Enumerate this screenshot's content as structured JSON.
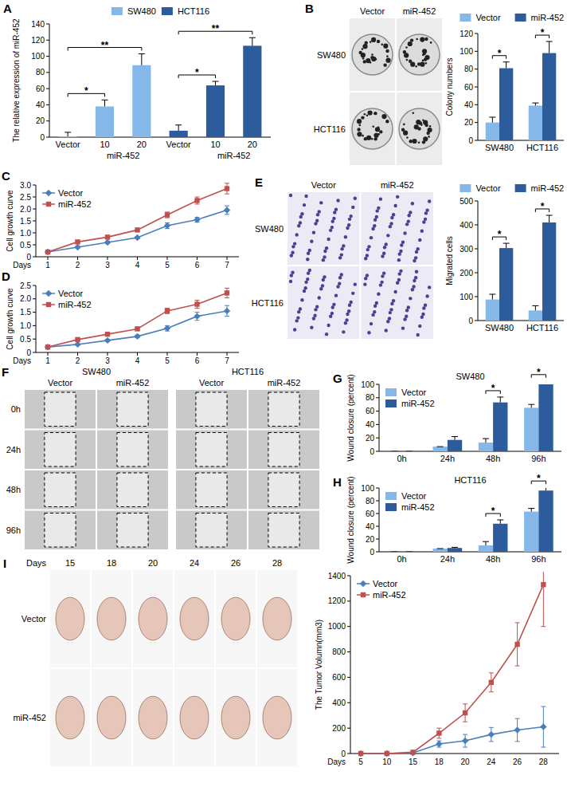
{
  "chart_data": [
    {
      "panel": "A",
      "type": "bar",
      "y_label": "The relative expression of miR-452",
      "categories": [
        "Vector",
        "10",
        "20",
        "Vector",
        "10",
        "20"
      ],
      "group_labels": [
        {
          "text": "miR-452",
          "from": 1,
          "to": 2
        },
        {
          "text": "miR-452",
          "from": 4,
          "to": 5
        }
      ],
      "series": [
        {
          "name": "SW480",
          "color": "#85b8e8",
          "values": [
            1,
            38,
            89,
            null,
            null,
            null
          ],
          "errors": [
            5,
            8,
            14,
            null,
            null,
            null
          ]
        },
        {
          "name": "HCT116",
          "color": "#2c5c9b",
          "values": [
            null,
            null,
            null,
            8,
            64,
            113
          ],
          "errors": [
            null,
            null,
            null,
            7,
            5,
            10
          ]
        }
      ],
      "ylim": [
        0,
        140
      ],
      "yticks": [
        0,
        20,
        40,
        60,
        80,
        100,
        120,
        140
      ],
      "legend": "top",
      "significance": [
        {
          "label": "*",
          "from": 0,
          "to": 1
        },
        {
          "label": "**",
          "from": 0,
          "to": 2
        },
        {
          "label": "*",
          "from": 3,
          "to": 4
        },
        {
          "label": "**",
          "from": 3,
          "to": 5
        }
      ]
    },
    {
      "panel": "B",
      "type": "bar",
      "y_label": "Colony numbers",
      "categories": [
        "SW480",
        "HCT116"
      ],
      "series": [
        {
          "name": "Vector",
          "color": "#85b8e8",
          "values": [
            20,
            39
          ],
          "errors": [
            6,
            3
          ]
        },
        {
          "name": "miR-452",
          "color": "#2c5c9b",
          "values": [
            81,
            98
          ],
          "errors": [
            7,
            13
          ]
        }
      ],
      "ylim": [
        0,
        120
      ],
      "yticks": [
        0,
        20,
        40,
        60,
        80,
        100,
        120
      ],
      "legend": "top",
      "significance": [
        {
          "label": "*",
          "category": 0
        },
        {
          "label": "*",
          "category": 1
        }
      ]
    },
    {
      "panel": "C",
      "type": "line",
      "y_label": "Cell growth curve",
      "x_label": "Days",
      "x": [
        1,
        2,
        3,
        4,
        5,
        6,
        7
      ],
      "xlim": [
        0.6,
        7.4
      ],
      "xticks": [
        1,
        2,
        3,
        4,
        5,
        6,
        7
      ],
      "series": [
        {
          "name": "Vector",
          "color": "#4a7ebb",
          "marker": "diamond",
          "values": [
            0.2,
            0.4,
            0.6,
            0.8,
            1.3,
            1.55,
            1.95
          ],
          "errors": [
            0.02,
            0.03,
            0.04,
            0.05,
            0.12,
            0.1,
            0.18
          ]
        },
        {
          "name": "miR-452",
          "color": "#c0504d",
          "marker": "square",
          "values": [
            0.2,
            0.62,
            0.82,
            1.12,
            1.75,
            2.35,
            2.85
          ],
          "errors": [
            0.02,
            0.04,
            0.05,
            0.06,
            0.12,
            0.15,
            0.22
          ]
        }
      ],
      "ylim": [
        0,
        3
      ],
      "yticks": [
        0,
        0.5,
        {
          "value": 1,
          "label": "1.0"
        },
        1.5,
        {
          "value": 2,
          "label": "2.0"
        },
        2.5,
        {
          "value": 3,
          "label": "3.0"
        }
      ],
      "legend": "top-left"
    },
    {
      "panel": "D",
      "type": "line",
      "y_label": "Cell growth curve",
      "x_label": "Days",
      "x": [
        1,
        2,
        3,
        4,
        5,
        6,
        7
      ],
      "xlim": [
        0.6,
        7.4
      ],
      "xticks": [
        1,
        2,
        3,
        4,
        5,
        6,
        7
      ],
      "series": [
        {
          "name": "Vector",
          "color": "#4a7ebb",
          "marker": "diamond",
          "values": [
            0.2,
            0.3,
            0.45,
            0.6,
            0.9,
            1.35,
            1.55
          ],
          "errors": [
            0.02,
            0.03,
            0.04,
            0.05,
            0.1,
            0.15,
            0.2
          ]
        },
        {
          "name": "miR-452",
          "color": "#c0504d",
          "marker": "square",
          "values": [
            0.2,
            0.48,
            0.68,
            0.88,
            1.55,
            1.8,
            2.22
          ],
          "errors": [
            0.02,
            0.03,
            0.04,
            0.05,
            0.1,
            0.15,
            0.18
          ]
        }
      ],
      "ylim": [
        0,
        2.5
      ],
      "yticks": [
        0,
        0.5,
        {
          "value": 1,
          "label": "1.0"
        },
        1.5,
        {
          "value": 2,
          "label": "2.0"
        },
        2.5
      ],
      "legend": "top-left"
    },
    {
      "panel": "E",
      "type": "bar",
      "y_label": "Migrated cells",
      "categories": [
        "SW480",
        "HCT116"
      ],
      "series": [
        {
          "name": "Vector",
          "color": "#85b8e8",
          "values": [
            88,
            42
          ],
          "errors": [
            22,
            20
          ]
        },
        {
          "name": "miR-452",
          "color": "#2c5c9b",
          "values": [
            303,
            410
          ],
          "errors": [
            20,
            30
          ]
        }
      ],
      "ylim": [
        0,
        500
      ],
      "yticks": [
        0,
        100,
        200,
        300,
        400,
        500
      ],
      "legend": "top",
      "significance": [
        {
          "label": "*",
          "category": 0
        },
        {
          "label": "*",
          "category": 1
        }
      ]
    },
    {
      "panel": "G",
      "type": "bar",
      "title": "SW480",
      "y_label": "Wound closure (percent)",
      "categories": [
        "0h",
        "24h",
        "48h",
        "96h"
      ],
      "series": [
        {
          "name": "Vector",
          "color": "#85b8e8",
          "values": [
            0,
            7,
            13,
            65
          ],
          "errors": [
            0,
            0,
            6,
            5
          ]
        },
        {
          "name": "miR-452",
          "color": "#2c5c9b",
          "values": [
            0,
            17,
            73,
            100
          ],
          "errors": [
            0,
            5,
            8,
            5
          ]
        }
      ],
      "ylim": [
        0,
        100
      ],
      "yticks": [
        0,
        20,
        40,
        60,
        80,
        100
      ],
      "legend": "top-left",
      "significance": [
        {
          "label": "*",
          "category": 2
        },
        {
          "label": "*",
          "category": 3
        }
      ]
    },
    {
      "panel": "H",
      "type": "bar",
      "title": "HCT116",
      "y_label": "Wound closure (percent)",
      "categories": [
        "0h",
        "24h",
        "48h",
        "96h"
      ],
      "series": [
        {
          "name": "Vector",
          "color": "#85b8e8",
          "values": [
            0,
            5,
            10,
            63
          ],
          "errors": [
            0,
            0,
            6,
            5
          ]
        },
        {
          "name": "miR-452",
          "color": "#2c5c9b",
          "values": [
            0,
            6,
            44,
            96
          ],
          "errors": [
            0,
            1,
            6,
            5
          ]
        }
      ],
      "ylim": [
        0,
        100
      ],
      "yticks": [
        0,
        20,
        40,
        60,
        80,
        100
      ],
      "legend": "top-left",
      "significance": [
        {
          "label": "*",
          "category": 2
        },
        {
          "label": "*",
          "category": 3
        }
      ]
    },
    {
      "panel": "I",
      "type": "line",
      "y_label": "The Tumor Volumn(mm3)",
      "x_label": "Days",
      "categories": [
        5,
        10,
        15,
        18,
        20,
        24,
        26,
        28
      ],
      "series": [
        {
          "name": "Vector",
          "color": "#4a7ebb",
          "marker": "diamond",
          "values": [
            0,
            0,
            5,
            75,
            100,
            150,
            185,
            210
          ],
          "errors": [
            0,
            0,
            0,
            25,
            50,
            55,
            90,
            160
          ]
        },
        {
          "name": "miR-452",
          "color": "#c0504d",
          "marker": "square",
          "values": [
            0,
            0,
            10,
            160,
            320,
            560,
            860,
            1330
          ],
          "errors": [
            0,
            0,
            5,
            40,
            70,
            75,
            170,
            330
          ]
        }
      ],
      "ylim": [
        0,
        1400
      ],
      "yticks": [
        0,
        200,
        400,
        600,
        800,
        1000,
        1200,
        1400
      ],
      "legend": "top-left"
    }
  ],
  "photos": [
    {
      "type": "colony",
      "cols": [
        "Vector",
        "miR-452"
      ],
      "rows": [
        "SW480",
        "HCT116"
      ]
    },
    {
      "type": "migration",
      "cols": [
        "Vector",
        "miR-452"
      ],
      "rows": [
        "SW480",
        "HCT116"
      ]
    },
    {
      "panel": "F",
      "type": "wound",
      "groups": [
        "SW480",
        "HCT116"
      ],
      "cols": [
        "Vector",
        "miR-452"
      ],
      "rows": [
        "0h",
        "24h",
        "48h",
        "96h"
      ]
    },
    {
      "type": "tumor",
      "header": "Days",
      "cols": [
        15,
        18,
        20,
        24,
        26,
        28
      ],
      "rows": [
        "Vector",
        "miR-452"
      ]
    }
  ]
}
